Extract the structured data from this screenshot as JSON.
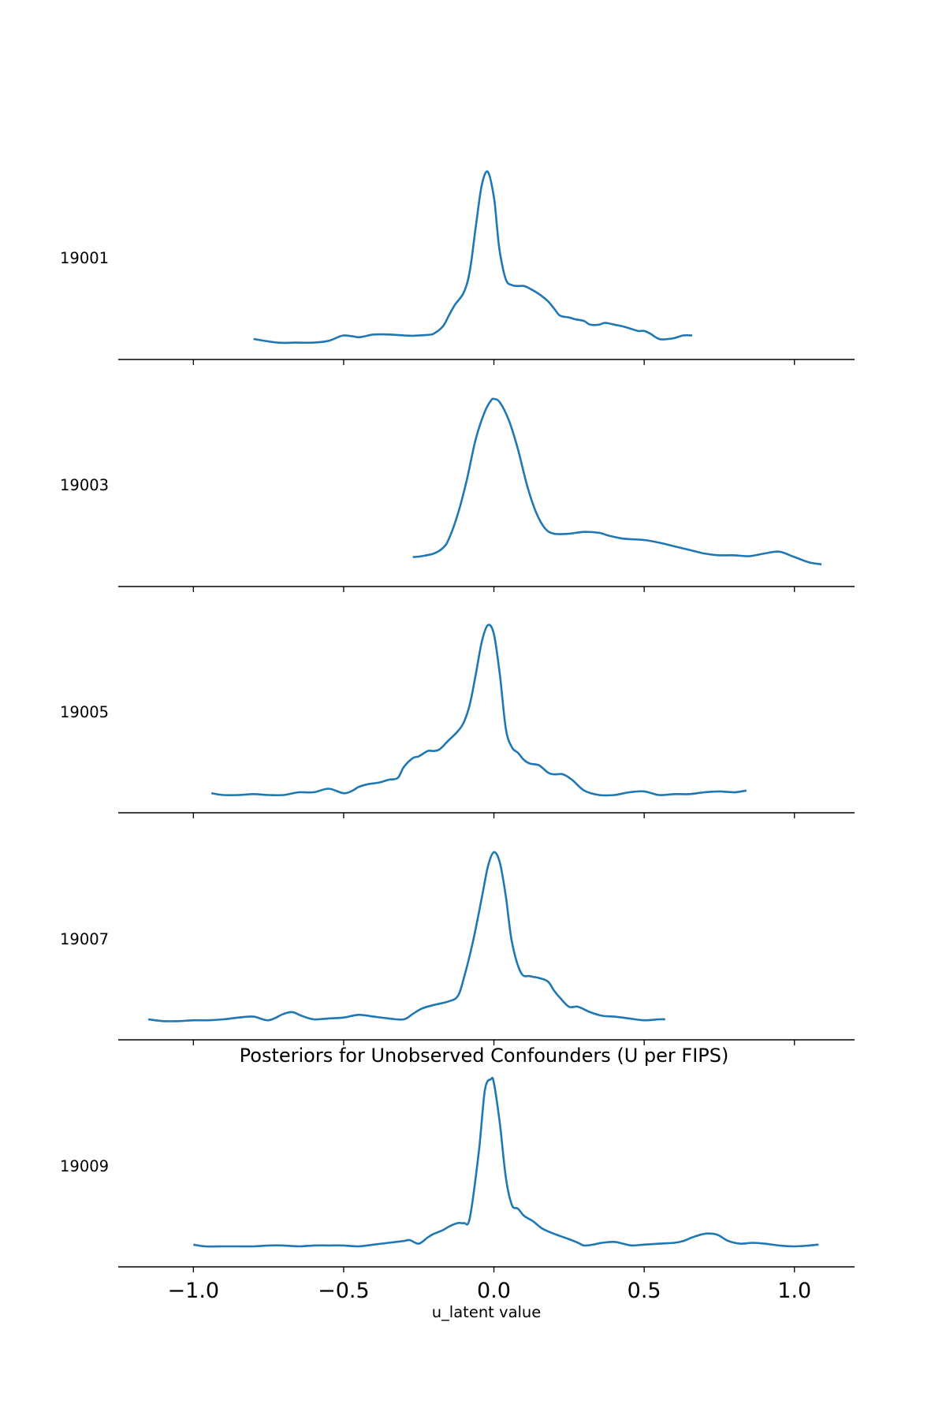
{
  "chart_data": {
    "type": "line",
    "title": "Posteriors for Unobserved Confounders (U per FIPS)",
    "xlabel": "u_latent value",
    "ylabel": "",
    "xlim": [
      -1.25,
      1.2
    ],
    "xticks": [
      -1.0,
      -0.5,
      0.0,
      0.5,
      1.0
    ],
    "xtick_labels": [
      "−1.0",
      "−0.5",
      "0.0",
      "0.5",
      "1.0"
    ],
    "grid": false,
    "legend": "none",
    "line_color": "#1f77b4",
    "series": [
      {
        "name": "19001",
        "x": [
          -0.8,
          -0.72,
          -0.66,
          -0.6,
          -0.55,
          -0.52,
          -0.5,
          -0.47,
          -0.45,
          -0.43,
          -0.4,
          -0.35,
          -0.3,
          -0.27,
          -0.25,
          -0.22,
          -0.2,
          -0.17,
          -0.15,
          -0.13,
          -0.1,
          -0.08,
          -0.06,
          -0.04,
          -0.02,
          0.0,
          0.01,
          0.02,
          0.04,
          0.06,
          0.08,
          0.1,
          0.12,
          0.15,
          0.18,
          0.2,
          0.22,
          0.25,
          0.27,
          0.3,
          0.32,
          0.35,
          0.37,
          0.4,
          0.43,
          0.45,
          0.48,
          0.5,
          0.52,
          0.55,
          0.58,
          0.6,
          0.63,
          0.66
        ],
        "y": [
          0.07,
          0.05,
          0.05,
          0.05,
          0.06,
          0.08,
          0.09,
          0.085,
          0.08,
          0.085,
          0.095,
          0.095,
          0.09,
          0.088,
          0.09,
          0.093,
          0.1,
          0.14,
          0.2,
          0.26,
          0.33,
          0.45,
          0.7,
          0.93,
          1.0,
          0.86,
          0.7,
          0.55,
          0.4,
          0.37,
          0.365,
          0.365,
          0.35,
          0.32,
          0.28,
          0.24,
          0.2,
          0.19,
          0.18,
          0.17,
          0.15,
          0.15,
          0.16,
          0.15,
          0.14,
          0.13,
          0.115,
          0.115,
          0.1,
          0.07,
          0.07,
          0.075,
          0.09,
          0.09
        ]
      },
      {
        "name": "19003",
        "x": [
          -0.27,
          -0.24,
          -0.2,
          -0.17,
          -0.15,
          -0.12,
          -0.09,
          -0.06,
          -0.03,
          -0.01,
          0.0,
          0.02,
          0.05,
          0.08,
          0.11,
          0.14,
          0.17,
          0.2,
          0.25,
          0.3,
          0.35,
          0.38,
          0.42,
          0.45,
          0.5,
          0.55,
          0.6,
          0.65,
          0.7,
          0.75,
          0.8,
          0.85,
          0.9,
          0.95,
          1.0,
          1.05,
          1.09
        ],
        "y": [
          0.12,
          0.125,
          0.14,
          0.17,
          0.22,
          0.36,
          0.55,
          0.78,
          0.93,
          0.99,
          1.0,
          0.98,
          0.88,
          0.72,
          0.52,
          0.37,
          0.28,
          0.25,
          0.25,
          0.26,
          0.255,
          0.24,
          0.225,
          0.22,
          0.215,
          0.2,
          0.18,
          0.16,
          0.14,
          0.13,
          0.13,
          0.125,
          0.14,
          0.15,
          0.12,
          0.09,
          0.08
        ]
      },
      {
        "name": "19005",
        "x": [
          -0.94,
          -0.9,
          -0.85,
          -0.8,
          -0.75,
          -0.7,
          -0.65,
          -0.6,
          -0.55,
          -0.5,
          -0.47,
          -0.45,
          -0.42,
          -0.38,
          -0.35,
          -0.32,
          -0.3,
          -0.27,
          -0.25,
          -0.22,
          -0.2,
          -0.18,
          -0.15,
          -0.12,
          -0.1,
          -0.08,
          -0.06,
          -0.04,
          -0.02,
          0.0,
          0.02,
          0.04,
          0.06,
          0.08,
          0.1,
          0.12,
          0.15,
          0.18,
          0.2,
          0.23,
          0.26,
          0.3,
          0.35,
          0.4,
          0.45,
          0.5,
          0.55,
          0.6,
          0.65,
          0.7,
          0.75,
          0.8,
          0.84
        ],
        "y": [
          0.065,
          0.055,
          0.055,
          0.06,
          0.055,
          0.055,
          0.07,
          0.07,
          0.09,
          0.065,
          0.08,
          0.1,
          0.115,
          0.125,
          0.14,
          0.15,
          0.21,
          0.26,
          0.27,
          0.3,
          0.3,
          0.31,
          0.36,
          0.41,
          0.46,
          0.56,
          0.73,
          0.91,
          1.0,
          0.95,
          0.72,
          0.42,
          0.32,
          0.29,
          0.25,
          0.23,
          0.22,
          0.18,
          0.17,
          0.17,
          0.14,
          0.08,
          0.055,
          0.055,
          0.07,
          0.075,
          0.055,
          0.06,
          0.06,
          0.07,
          0.075,
          0.07,
          0.08
        ]
      },
      {
        "name": "19007",
        "x": [
          -1.15,
          -1.1,
          -1.05,
          -1.0,
          -0.95,
          -0.9,
          -0.85,
          -0.8,
          -0.75,
          -0.7,
          -0.67,
          -0.64,
          -0.6,
          -0.55,
          -0.5,
          -0.45,
          -0.4,
          -0.35,
          -0.3,
          -0.27,
          -0.24,
          -0.2,
          -0.15,
          -0.12,
          -0.1,
          -0.07,
          -0.04,
          -0.02,
          0.0,
          0.02,
          0.04,
          0.06,
          0.09,
          0.12,
          0.15,
          0.18,
          0.2,
          0.22,
          0.25,
          0.28,
          0.32,
          0.36,
          0.4,
          0.45,
          0.5,
          0.55,
          0.57
        ],
        "y": [
          0.07,
          0.06,
          0.06,
          0.065,
          0.065,
          0.07,
          0.08,
          0.085,
          0.065,
          0.1,
          0.11,
          0.09,
          0.07,
          0.075,
          0.08,
          0.095,
          0.085,
          0.075,
          0.07,
          0.1,
          0.13,
          0.15,
          0.17,
          0.2,
          0.3,
          0.5,
          0.75,
          0.92,
          1.0,
          0.94,
          0.75,
          0.5,
          0.33,
          0.31,
          0.3,
          0.28,
          0.23,
          0.19,
          0.14,
          0.14,
          0.11,
          0.09,
          0.085,
          0.075,
          0.065,
          0.07,
          0.07
        ]
      },
      {
        "name": "19009",
        "x": [
          -1.0,
          -0.96,
          -0.9,
          -0.85,
          -0.8,
          -0.75,
          -0.7,
          -0.65,
          -0.6,
          -0.55,
          -0.5,
          -0.45,
          -0.4,
          -0.35,
          -0.3,
          -0.28,
          -0.25,
          -0.22,
          -0.2,
          -0.17,
          -0.15,
          -0.12,
          -0.1,
          -0.08,
          -0.05,
          -0.03,
          -0.01,
          0.0,
          0.02,
          0.04,
          0.06,
          0.08,
          0.1,
          0.13,
          0.16,
          0.2,
          0.25,
          0.28,
          0.3,
          0.33,
          0.36,
          0.4,
          0.43,
          0.46,
          0.5,
          0.55,
          0.6,
          0.63,
          0.66,
          0.7,
          0.73,
          0.75,
          0.78,
          0.82,
          0.86,
          0.9,
          0.95,
          1.0,
          1.05,
          1.08
        ],
        "y": [
          0.08,
          0.07,
          0.07,
          0.07,
          0.07,
          0.075,
          0.075,
          0.07,
          0.075,
          0.075,
          0.075,
          0.07,
          0.08,
          0.09,
          0.1,
          0.105,
          0.085,
          0.12,
          0.14,
          0.16,
          0.18,
          0.2,
          0.2,
          0.23,
          0.6,
          0.94,
          1.0,
          0.98,
          0.75,
          0.45,
          0.3,
          0.28,
          0.24,
          0.21,
          0.17,
          0.14,
          0.11,
          0.09,
          0.075,
          0.08,
          0.09,
          0.095,
          0.085,
          0.075,
          0.08,
          0.085,
          0.09,
          0.1,
          0.12,
          0.14,
          0.14,
          0.13,
          0.1,
          0.085,
          0.09,
          0.085,
          0.075,
          0.07,
          0.075,
          0.08
        ]
      }
    ]
  }
}
